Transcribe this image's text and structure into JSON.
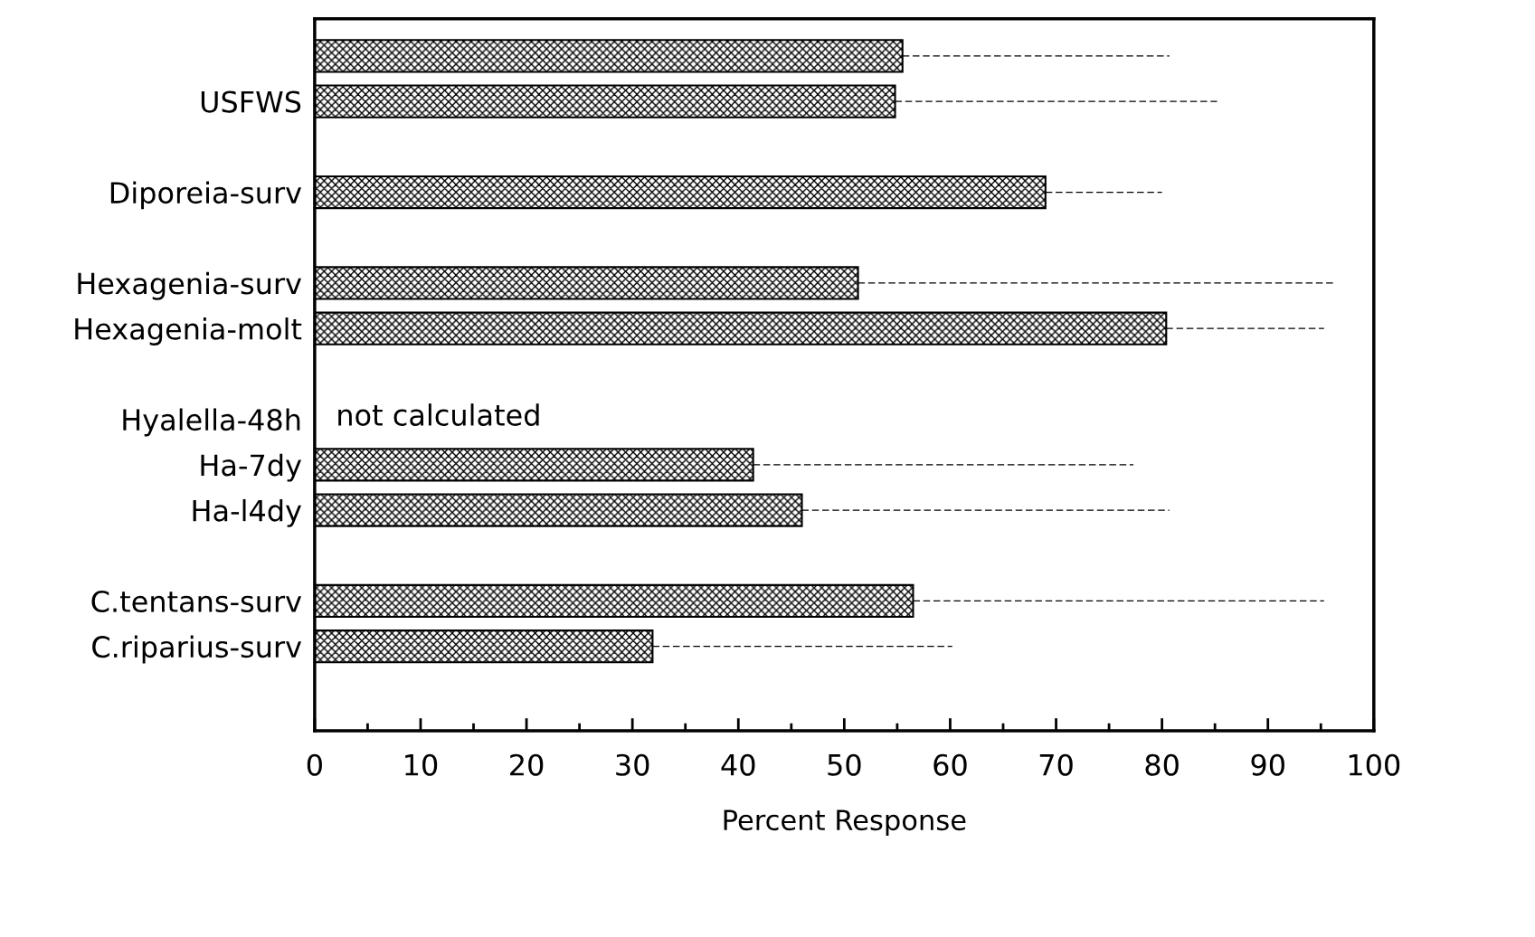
{
  "chart_data": {
    "type": "bar",
    "orientation": "horizontal",
    "categories": [
      null,
      "USFWS",
      null,
      "Diporeia-surv",
      null,
      "Hexagenia-surv",
      "Hexagenia-molt",
      null,
      "Hyalella-48h",
      "Ha-7dy",
      "Ha-l4dy",
      null,
      "C.tentans-surv",
      "C.riparius-surv"
    ],
    "values": [
      55.5,
      54.8,
      null,
      69,
      null,
      51.3,
      80.4,
      null,
      null,
      41.4,
      46,
      null,
      56.5,
      31.9
    ],
    "errors": [
      [
        55.5,
        80.7
      ],
      [
        54.8,
        85.2
      ],
      null,
      [
        69,
        80
      ],
      null,
      [
        51.3,
        96.2
      ],
      [
        80.4,
        95.3
      ],
      null,
      null,
      [
        41.4,
        77.3
      ],
      [
        46,
        80.7
      ],
      null,
      [
        56.5,
        95.3
      ],
      [
        31.9,
        60.2
      ]
    ],
    "color": "#000000",
    "xlim": [
      0,
      100
    ],
    "xticks": [
      0,
      {
        "value": 5,
        "label": null
      },
      10,
      {
        "value": 15,
        "label": null
      },
      20,
      {
        "value": 25,
        "label": null
      },
      30,
      {
        "value": 35,
        "label": null
      },
      40,
      {
        "value": 45,
        "label": null
      },
      50,
      {
        "value": 55,
        "label": null
      },
      60,
      {
        "value": 65,
        "label": null
      },
      70,
      {
        "value": 75,
        "label": null
      },
      80,
      {
        "value": 85,
        "label": null
      },
      90,
      {
        "value": 95,
        "label": null
      },
      100
    ],
    "xlabel": "Percent Response",
    "annotations": [
      "not calculated"
    ],
    "grid": false,
    "legend": false
  }
}
